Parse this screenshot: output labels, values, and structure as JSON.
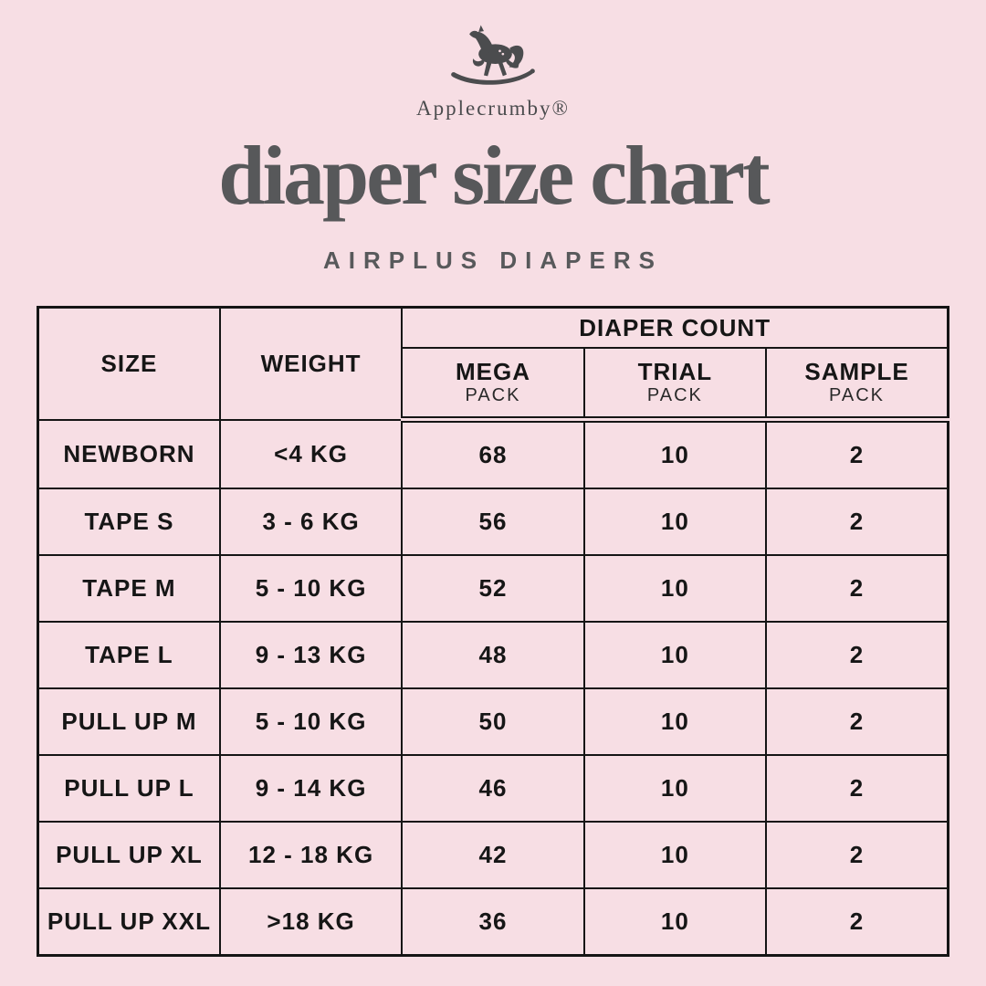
{
  "brand": {
    "name": "Applecrumby®",
    "logo_icon": "rocking-horse-icon"
  },
  "header": {
    "title": "diaper size chart",
    "subtitle": "AIRPLUS DIAPERS"
  },
  "colors": {
    "background": "#F7DEE4",
    "title_gray": "#57585A",
    "logo_charcoal": "#4B4C4E",
    "table_text": "#161616",
    "grid_border": "#151515"
  },
  "table": {
    "columns": {
      "size": "SIZE",
      "weight": "WEIGHT",
      "diaper_count": "DIAPER COUNT"
    },
    "subcolumns": [
      {
        "label": "MEGA",
        "sub": "PACK"
      },
      {
        "label": "TRIAL",
        "sub": "PACK"
      },
      {
        "label": "SAMPLE",
        "sub": "PACK"
      }
    ],
    "rows": [
      {
        "size": "NEWBORN",
        "weight": "<4 KG",
        "mega": "68",
        "trial": "10",
        "sample": "2"
      },
      {
        "size": "TAPE S",
        "weight": "3 - 6 KG",
        "mega": "56",
        "trial": "10",
        "sample": "2"
      },
      {
        "size": "TAPE M",
        "weight": "5 - 10 KG",
        "mega": "52",
        "trial": "10",
        "sample": "2"
      },
      {
        "size": "TAPE L",
        "weight": "9 - 13 KG",
        "mega": "48",
        "trial": "10",
        "sample": "2"
      },
      {
        "size": "PULL UP M",
        "weight": "5 - 10 KG",
        "mega": "50",
        "trial": "10",
        "sample": "2"
      },
      {
        "size": "PULL UP L",
        "weight": "9 - 14 KG",
        "mega": "46",
        "trial": "10",
        "sample": "2"
      },
      {
        "size": "PULL UP XL",
        "weight": "12 - 18 KG",
        "mega": "42",
        "trial": "10",
        "sample": "2"
      },
      {
        "size": "PULL UP XXL",
        "weight": ">18 KG",
        "mega": "36",
        "trial": "10",
        "sample": "2"
      }
    ]
  },
  "chart_data": {
    "type": "table",
    "title": "diaper size chart",
    "subtitle": "AIRPLUS DIAPERS",
    "columns": [
      "SIZE",
      "WEIGHT",
      "MEGA PACK",
      "TRIAL PACK",
      "SAMPLE PACK"
    ],
    "rows": [
      [
        "NEWBORN",
        "<4 KG",
        68,
        10,
        2
      ],
      [
        "TAPE S",
        "3 - 6 KG",
        56,
        10,
        2
      ],
      [
        "TAPE M",
        "5 - 10 KG",
        52,
        10,
        2
      ],
      [
        "TAPE L",
        "9 - 13 KG",
        48,
        10,
        2
      ],
      [
        "PULL UP M",
        "5 - 10 KG",
        50,
        10,
        2
      ],
      [
        "PULL UP L",
        "9 - 14 KG",
        46,
        10,
        2
      ],
      [
        "PULL UP XL",
        "12 - 18 KG",
        42,
        10,
        2
      ],
      [
        "PULL UP XXL",
        ">18 KG",
        36,
        10,
        2
      ]
    ]
  }
}
